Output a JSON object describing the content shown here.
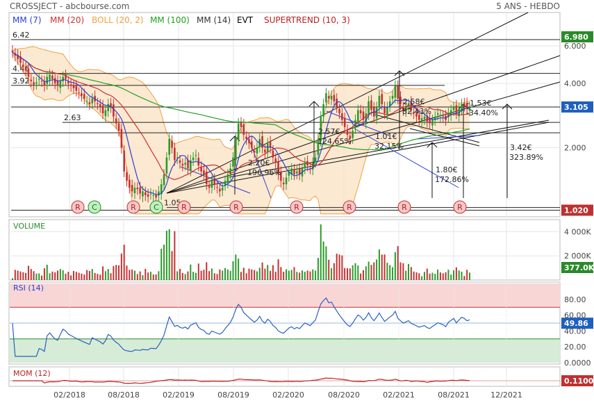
{
  "header": {
    "left": "CROSSJECT - abcbourse.com",
    "right": "5 ANS - HEBDO"
  },
  "indicators": [
    {
      "label": "MM (7)",
      "color": "#2a3fd0"
    },
    {
      "label": "MM (20)",
      "color": "#d03030"
    },
    {
      "label": "BOLL (20, 2)",
      "color": "#f0a040"
    },
    {
      "label": "MM (100)",
      "color": "#20a020"
    },
    {
      "label": "MM (14)",
      "color": "#333333"
    },
    {
      "label": "EVT",
      "color": "#000000"
    },
    {
      "label": "SUPERTREND (10, 3)",
      "color": "#c02020"
    }
  ],
  "chart_data": [
    {
      "type": "candlestick",
      "title": "",
      "ylim": [
        0.95,
        8.6
      ],
      "y_scale": "log",
      "y_ticks": [
        {
          "value": 6.0,
          "label": "6.000"
        },
        {
          "value": 4.0,
          "label": "4.000"
        },
        {
          "value": 2.0,
          "label": "2.000"
        }
      ],
      "x_ticks": [
        "02/2018",
        "08/2018",
        "02/2019",
        "08/2019",
        "02/2020",
        "08/2020",
        "02/2021",
        "08/2021",
        "12/2021"
      ],
      "last_price": "3.105",
      "max_label": "6.980",
      "min_label": "1.020",
      "max_color": "#2a8a2a",
      "min_color": "#c03030",
      "last_color": "#1f5fbf",
      "levels": [
        {
          "label": "6.42",
          "value": 6.42
        },
        {
          "label": "4.46",
          "value": 4.46
        },
        {
          "label": "3.92",
          "value": 3.92
        },
        {
          "label": "2.63",
          "value": 2.63
        },
        {
          "label": "1.05",
          "value": 1.05
        }
      ],
      "annotations": [
        {
          "price": "2.20€",
          "pct": "196.96%"
        },
        {
          "price": "2.57€",
          "pct": "124.65%"
        },
        {
          "price": "2.58€",
          "pct": "82.43%"
        },
        {
          "price": "1.01€",
          "pct": "32.15%"
        },
        {
          "price": "-1.53€",
          "pct": "-34.40%"
        },
        {
          "price": "3.42€",
          "pct": "323.89%"
        },
        {
          "price": "1.80€",
          "pct": "172.86%"
        }
      ],
      "signals": [
        "R",
        "C",
        "R",
        "C",
        "R",
        "R",
        "R",
        "R",
        "R",
        "R"
      ],
      "weekly_close": [
        5.6,
        5.4,
        5.2,
        5.0,
        4.8,
        4.6,
        4.3,
        4.1,
        3.95,
        4.05,
        4.2,
        4.1,
        3.9,
        4.3,
        4.4,
        4.2,
        4.0,
        3.9,
        4.1,
        4.3,
        4.2,
        4.0,
        3.9,
        3.8,
        3.7,
        3.6,
        3.5,
        3.4,
        3.3,
        3.2,
        3.4,
        3.3,
        3.2,
        3.1,
        2.9,
        3.0,
        3.2,
        3.1,
        2.8,
        2.6,
        2.4,
        2.0,
        1.55,
        1.4,
        1.3,
        1.25,
        1.3,
        1.28,
        1.22,
        1.25,
        1.2,
        1.18,
        1.22,
        1.2,
        1.17,
        1.25,
        1.35,
        1.5,
        1.8,
        2.2,
        2.0,
        1.75,
        1.8,
        1.7,
        1.65,
        1.7,
        1.6,
        1.75,
        1.8,
        1.85,
        1.65,
        1.55,
        1.5,
        1.35,
        1.3,
        1.4,
        1.35,
        1.3,
        1.25,
        1.3,
        1.4,
        1.5,
        1.6,
        1.8,
        2.2,
        2.6,
        2.5,
        2.3,
        2.2,
        2.1,
        2.0,
        1.9,
        2.0,
        2.2,
        2.0,
        1.9,
        2.1,
        2.0,
        1.8,
        1.7,
        1.5,
        1.4,
        1.35,
        1.45,
        1.55,
        1.6,
        1.5,
        1.55,
        1.5,
        1.6,
        1.7,
        1.65,
        1.6,
        1.7,
        1.8,
        2.2,
        2.8,
        3.2,
        3.6,
        3.4,
        3.5,
        3.3,
        3.1,
        2.9,
        2.7,
        2.5,
        2.3,
        2.2,
        2.4,
        2.7,
        3.0,
        2.9,
        2.7,
        2.9,
        3.3,
        3.0,
        2.8,
        3.1,
        3.5,
        3.2,
        2.9,
        3.1,
        3.3,
        3.5,
        3.9,
        3.4,
        3.2,
        3.0,
        3.1,
        3.2,
        3.0,
        2.9,
        2.8,
        2.7,
        2.75,
        2.8,
        2.65,
        2.6,
        2.7,
        2.8,
        2.9,
        2.85,
        2.8,
        2.7,
        2.9,
        3.0,
        3.1,
        2.9,
        3.05,
        3.2,
        3.15,
        3.05,
        3.1
      ]
    },
    {
      "type": "bar",
      "title": "VOLUME",
      "y_ticks": [
        {
          "value": 4000000,
          "label": "4 000K"
        },
        {
          "value": 2000000,
          "label": "2 000K"
        }
      ],
      "ylim": [
        0,
        5000000
      ],
      "last_label": "377.0K",
      "last_color": "#2a8a2a"
    },
    {
      "type": "line",
      "title": "RSI (14)",
      "ylim": [
        0,
        100
      ],
      "y_ticks": [
        {
          "value": 80,
          "label": "80.00"
        },
        {
          "value": 60,
          "label": "60.00"
        },
        {
          "value": 40,
          "label": "40.00"
        },
        {
          "value": 20,
          "label": "20.00"
        },
        {
          "value": 0,
          "label": "0.0000"
        }
      ],
      "overbought": 70,
      "oversold": 30,
      "last_label": "49.86",
      "last_color": "#1f5fbf"
    },
    {
      "type": "line",
      "title": "MOM (12)",
      "last_label": "0.1100",
      "last_color": "#c03030"
    }
  ]
}
